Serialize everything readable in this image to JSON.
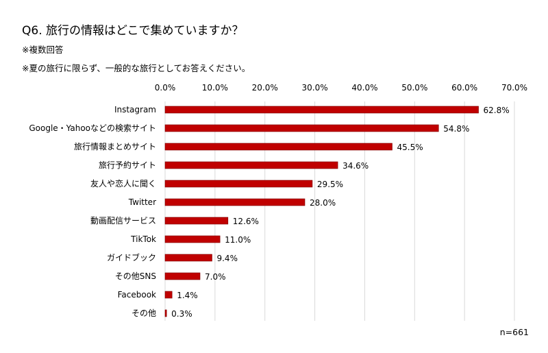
{
  "title": "Q6. 旅行の情報はどこで集めていますか？",
  "notes": [
    "※複数回答",
    "※夏の旅行に限らず、一般的な旅行としてお答えください。"
  ],
  "sample_size": "n=661",
  "colors": {
    "bar": "#c00000",
    "bar_edge": "#7a0000",
    "grid": "#d9d9d9"
  },
  "chart_data": {
    "type": "bar",
    "orientation": "horizontal",
    "title": "Q6. 旅行の情報はどこで集めていますか？",
    "xlabel": "",
    "ylabel": "",
    "xlim": [
      0,
      70
    ],
    "x_ticks": [
      0,
      10,
      20,
      30,
      40,
      50,
      60,
      70
    ],
    "x_tick_labels": [
      "0.0%",
      "10.0%",
      "20.0%",
      "30.0%",
      "40.0%",
      "50.0%",
      "60.0%",
      "70.0%"
    ],
    "x_axis_position": "top",
    "grid": true,
    "categories": [
      "Instagram",
      "Google・Yahooなどの検索サイト",
      "旅行情報まとめサイト",
      "旅行予約サイト",
      "友人や恋人に聞く",
      "Twitter",
      "動画配信サービス",
      "TikTok",
      "ガイドブック",
      "その他SNS",
      "Facebook",
      "その他"
    ],
    "values": [
      62.8,
      54.8,
      45.5,
      34.6,
      29.5,
      28.0,
      12.6,
      11.0,
      9.4,
      7.0,
      1.4,
      0.3
    ],
    "data_labels": [
      "62.8%",
      "54.8%",
      "45.5%",
      "34.6%",
      "29.5%",
      "28.0%",
      "12.6%",
      "11.0%",
      "9.4%",
      "7.0%",
      "1.4%",
      "0.3%"
    ]
  }
}
